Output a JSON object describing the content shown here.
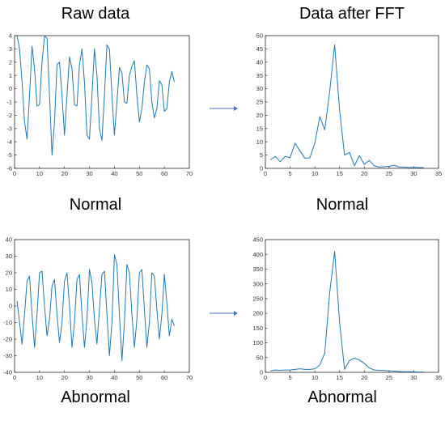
{
  "titles": {
    "raw": "Raw data",
    "fft": "Data after FFT",
    "normal_left": "Normal",
    "normal_right": "Normal",
    "abnormal_left": "Abnormal",
    "abnormal_right": "Abnormal"
  },
  "colors": {
    "line": "#1f77b4",
    "arrow": "#4472c4",
    "axis": "#262626"
  },
  "chart_data": [
    {
      "id": "normal-raw",
      "type": "line",
      "xlim": [
        0,
        70
      ],
      "ylim": [
        -6,
        4
      ],
      "xticks": [
        0,
        10,
        20,
        30,
        40,
        50,
        60,
        70
      ],
      "yticks": [
        -6,
        -5,
        -4,
        -3,
        -2,
        -1,
        0,
        1,
        2,
        3,
        4
      ],
      "x": [
        1,
        2,
        3,
        4,
        5,
        6,
        7,
        8,
        9,
        10,
        11,
        12,
        13,
        14,
        15,
        16,
        17,
        18,
        19,
        20,
        21,
        22,
        23,
        24,
        25,
        26,
        27,
        28,
        29,
        30,
        31,
        32,
        33,
        34,
        35,
        36,
        37,
        38,
        39,
        40,
        41,
        42,
        43,
        44,
        45,
        46,
        47,
        48,
        49,
        50,
        51,
        52,
        53,
        54,
        55,
        56,
        57,
        58,
        59,
        60,
        61,
        62,
        63,
        64
      ],
      "y": [
        4.0,
        3.0,
        0.5,
        -2.5,
        -3.8,
        -0.5,
        3.2,
        1.5,
        -1.3,
        -1.2,
        2.0,
        4.0,
        3.8,
        -0.5,
        -5.0,
        -2.5,
        1.8,
        2.0,
        -0.5,
        -3.5,
        -0.5,
        2.4,
        1.5,
        -1.2,
        -1.3,
        1.8,
        3.0,
        0.5,
        -3.5,
        -3.8,
        -0.5,
        3.0,
        1.0,
        -3.0,
        -3.9,
        -0.5,
        3.3,
        3.0,
        -0.5,
        -3.5,
        -1.0,
        1.6,
        1.2,
        -1.0,
        -1.1,
        1.0,
        1.7,
        2.1,
        -0.5,
        -2.5,
        -1.5,
        0.5,
        1.8,
        1.5,
        -1.0,
        -2.2,
        -1.5,
        0.6,
        0.3,
        -1.7,
        -1.5,
        0.5,
        1.3,
        0.5
      ]
    },
    {
      "id": "normal-fft",
      "type": "line",
      "xlim": [
        0,
        35
      ],
      "ylim": [
        0,
        50
      ],
      "xticks": [
        0,
        5,
        10,
        15,
        20,
        25,
        30,
        35
      ],
      "yticks": [
        0,
        5,
        10,
        15,
        20,
        25,
        30,
        35,
        40,
        45,
        50
      ],
      "x": [
        1,
        2,
        3,
        4,
        5,
        6,
        7,
        8,
        9,
        10,
        11,
        12,
        13,
        14,
        15,
        16,
        17,
        18,
        19,
        20,
        21,
        22,
        23,
        24,
        25,
        26,
        27,
        28,
        29,
        30,
        31,
        32
      ],
      "y": [
        3.2,
        4.5,
        2.5,
        4.5,
        4.0,
        9.5,
        6.5,
        3.8,
        4.0,
        9.5,
        19.5,
        14.5,
        29.0,
        46.5,
        22.0,
        5.0,
        6.0,
        1.0,
        4.8,
        1.5,
        3.0,
        1.0,
        0.5,
        0.6,
        0.8,
        1.2,
        0.5,
        0.5,
        0.3,
        0.4,
        0.3,
        0.3
      ]
    },
    {
      "id": "abnormal-raw",
      "type": "line",
      "xlim": [
        0,
        70
      ],
      "ylim": [
        -40,
        40
      ],
      "xticks": [
        0,
        10,
        20,
        30,
        40,
        50,
        60,
        70
      ],
      "yticks": [
        -40,
        -30,
        -20,
        -10,
        0,
        10,
        20,
        30,
        40
      ],
      "x": [
        1,
        2,
        3,
        4,
        5,
        6,
        7,
        8,
        9,
        10,
        11,
        12,
        13,
        14,
        15,
        16,
        17,
        18,
        19,
        20,
        21,
        22,
        23,
        24,
        25,
        26,
        27,
        28,
        29,
        30,
        31,
        32,
        33,
        34,
        35,
        36,
        37,
        38,
        39,
        40,
        41,
        42,
        43,
        44,
        45,
        46,
        47,
        48,
        49,
        50,
        51,
        52,
        53,
        54,
        55,
        56,
        57,
        58,
        59,
        60,
        61,
        62,
        63,
        64
      ],
      "y": [
        3,
        -10,
        -23,
        -5,
        15,
        18,
        -5,
        -25,
        -5,
        20,
        21,
        0,
        -18,
        -8,
        12,
        16,
        -5,
        -22,
        -10,
        15,
        20,
        0,
        -25,
        -10,
        16,
        19,
        -5,
        -25,
        -8,
        22,
        14,
        -8,
        -23,
        -2,
        19,
        21,
        -5,
        -30,
        -10,
        31,
        25,
        -5,
        -33,
        -10,
        25,
        20,
        -5,
        -25,
        -8,
        20,
        22,
        -2,
        -25,
        -10,
        20,
        18,
        -2,
        -20,
        -5,
        19,
        2,
        -18,
        -8,
        -12
      ]
    },
    {
      "id": "abnormal-fft",
      "type": "line",
      "xlim": [
        0,
        35
      ],
      "ylim": [
        0,
        450
      ],
      "xticks": [
        0,
        5,
        10,
        15,
        20,
        25,
        30,
        35
      ],
      "yticks": [
        0,
        50,
        100,
        150,
        200,
        250,
        300,
        350,
        400,
        450
      ],
      "x": [
        1,
        2,
        3,
        4,
        5,
        6,
        7,
        8,
        9,
        10,
        11,
        12,
        13,
        14,
        15,
        16,
        17,
        18,
        19,
        20,
        21,
        22,
        23,
        24,
        25,
        26,
        27,
        28,
        29,
        30,
        31,
        32
      ],
      "y": [
        5,
        8,
        7,
        8,
        8,
        10,
        12,
        10,
        10,
        12,
        25,
        65,
        270,
        410,
        170,
        10,
        40,
        48,
        42,
        30,
        15,
        8,
        7,
        6,
        5,
        4,
        3,
        2,
        2,
        2,
        1,
        1
      ]
    }
  ]
}
